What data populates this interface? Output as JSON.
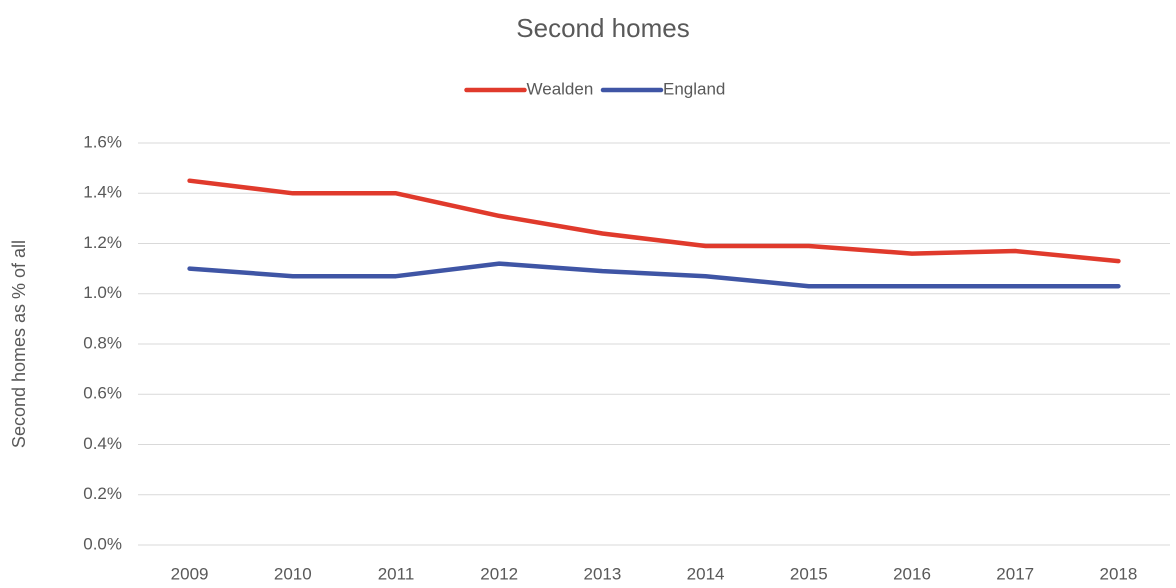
{
  "chart_data": {
    "type": "line",
    "title": "Second homes",
    "y_label": "Second homes as % of all",
    "categories": [
      "2009",
      "2010",
      "2011",
      "2012",
      "2013",
      "2014",
      "2015",
      "2016",
      "2017",
      "2018"
    ],
    "series": [
      {
        "name": "Wealden",
        "color": "#e03a2c",
        "values": [
          1.45,
          1.4,
          1.4,
          1.31,
          1.24,
          1.19,
          1.19,
          1.16,
          1.17,
          1.13
        ]
      },
      {
        "name": "England",
        "color": "#3f55a5",
        "values": [
          1.1,
          1.07,
          1.07,
          1.12,
          1.09,
          1.07,
          1.03,
          1.03,
          1.03,
          1.03
        ]
      }
    ],
    "ylim": [
      0,
      1.6
    ],
    "yticks": [
      {
        "value": 0,
        "label": "0.0%"
      },
      {
        "value": 0.2,
        "label": "0.2%"
      },
      {
        "value": 0.4,
        "label": "0.4%"
      },
      {
        "value": 0.6,
        "label": "0.6%"
      },
      {
        "value": 0.8,
        "label": "0.8%"
      },
      {
        "value": 1.0,
        "label": "1.0%"
      },
      {
        "value": 1.2,
        "label": "1.2%"
      },
      {
        "value": 1.4,
        "label": "1.4%"
      },
      {
        "value": 1.6,
        "label": "1.6%"
      }
    ],
    "grid": true,
    "legend": "top"
  }
}
